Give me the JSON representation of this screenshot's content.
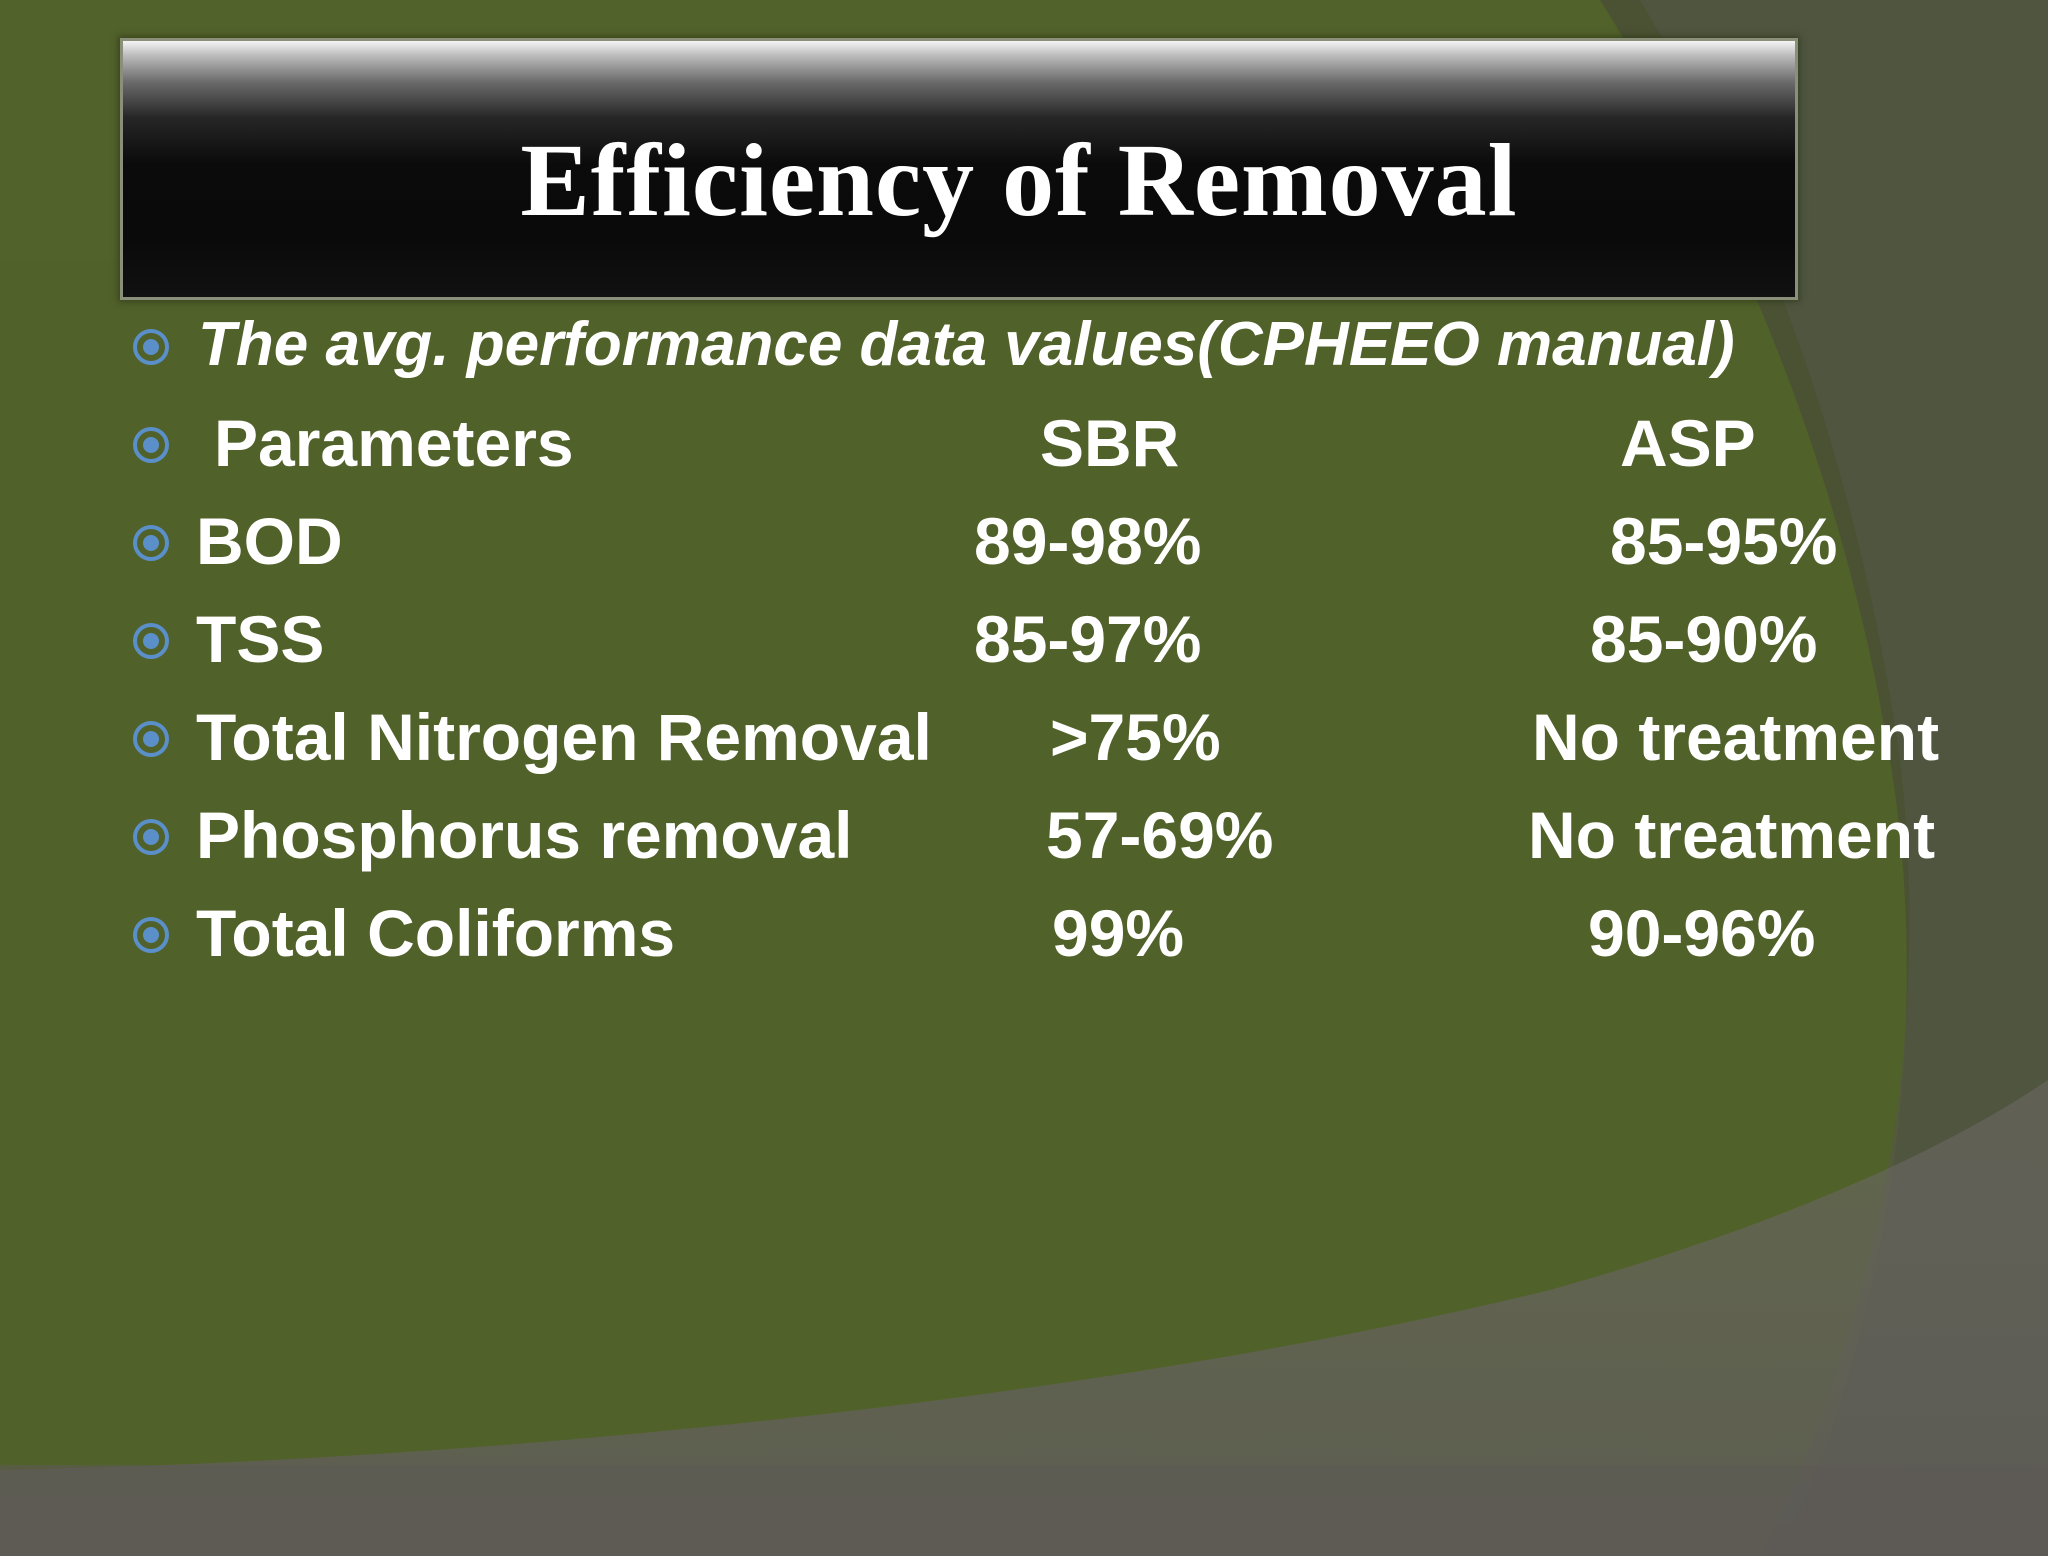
{
  "slide": {
    "title": "Efficiency of Removal",
    "intro": "The avg. performance data values(CPHEEO manual)",
    "header": {
      "parameter": "Parameters",
      "sbr": "SBR",
      "asp": "ASP"
    },
    "rows": [
      {
        "parameter": "BOD",
        "sbr": "89-98%",
        "asp": "85-95%"
      },
      {
        "parameter": "TSS",
        "sbr": "85-97%",
        "asp": "85-90%"
      },
      {
        "parameter": "Total Nitrogen Removal",
        "sbr": ">75%",
        "asp": "No treatment"
      },
      {
        "parameter": "Phosphorus removal",
        "sbr": "57-69%",
        "asp": "No treatment"
      },
      {
        "parameter": "Total Coliforms",
        "sbr": "99%",
        "asp": "90-96%"
      }
    ]
  },
  "colors": {
    "background": "#51612a",
    "text": "#ffffff",
    "bullet": "#5b8fc9"
  },
  "icons": {
    "bullet": "target-bullet-icon"
  }
}
